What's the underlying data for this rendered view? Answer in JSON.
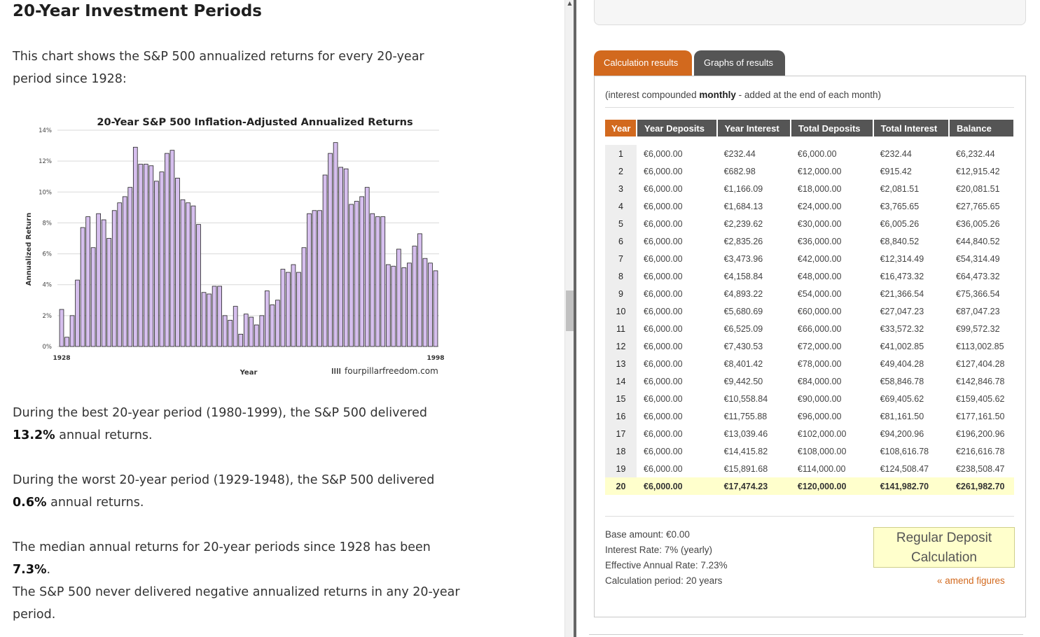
{
  "article": {
    "heading": "20-Year Investment Periods",
    "intro": "This chart shows the S&P 500 annualized returns for every 20-year period since 1928:",
    "best_pre": "During the best 20-year period (1980-1999), the S&P 500 delivered ",
    "best_value": "13.2%",
    "best_post": " annual returns.",
    "worst_pre": "During the worst 20-year period (1929-1948), the S&P 500 delivered ",
    "worst_value": "0.6%",
    "worst_post": " annual returns.",
    "median_pre": "The median annual returns for 20-year periods since 1928 has been ",
    "median_value": "7.3%",
    "median_post": ".",
    "never": "The S&P 500 never delivered negative annualized returns in any 20-year period."
  },
  "chart_data": {
    "type": "bar",
    "title": "20-Year S&P 500 Inflation-Adjusted Annualized Returns",
    "xlabel": "Year",
    "ylabel": "Annualized Return",
    "watermark": "fourpillarfreedom.com",
    "x_start": 1928,
    "x_end": 1998,
    "x_tick_labels": [
      "1928",
      "1998"
    ],
    "y_ticks": [
      "0%",
      "2%",
      "4%",
      "6%",
      "8%",
      "10%",
      "12%",
      "14%"
    ],
    "ylim": [
      0,
      14
    ],
    "grid": true,
    "bar_color": "#d6bfee",
    "values": [
      2.4,
      0.6,
      2.0,
      4.3,
      7.7,
      8.4,
      6.4,
      8.6,
      8.2,
      7.0,
      8.8,
      9.3,
      9.7,
      10.3,
      12.9,
      11.8,
      11.8,
      11.7,
      10.7,
      11.3,
      12.5,
      12.7,
      10.9,
      9.5,
      9.3,
      9.1,
      7.9,
      3.5,
      3.4,
      3.9,
      3.9,
      2.0,
      1.7,
      2.6,
      0.8,
      2.1,
      1.9,
      1.4,
      2.0,
      3.6,
      2.7,
      3.0,
      5.0,
      4.8,
      5.3,
      4.8,
      6.4,
      8.6,
      8.8,
      8.8,
      11.1,
      12.5,
      13.2,
      11.6,
      11.5,
      9.2,
      9.4,
      9.7,
      10.3,
      8.6,
      8.4,
      8.4,
      5.3,
      5.2,
      6.3,
      5.1,
      5.4,
      6.5,
      7.3,
      5.7,
      5.4,
      4.9
    ]
  },
  "calculator": {
    "tab_results": "Calculation results",
    "tab_graphs": "Graphs of results",
    "note_pre": "(interest compounded ",
    "note_bold": "monthly",
    "note_post": " - added at the end of each month)",
    "headers": [
      "Year",
      "Year Deposits",
      "Year Interest",
      "Total Deposits",
      "Total Interest",
      "Balance"
    ],
    "rows": [
      [
        "1",
        "€6,000.00",
        "€232.44",
        "€6,000.00",
        "€232.44",
        "€6,232.44"
      ],
      [
        "2",
        "€6,000.00",
        "€682.98",
        "€12,000.00",
        "€915.42",
        "€12,915.42"
      ],
      [
        "3",
        "€6,000.00",
        "€1,166.09",
        "€18,000.00",
        "€2,081.51",
        "€20,081.51"
      ],
      [
        "4",
        "€6,000.00",
        "€1,684.13",
        "€24,000.00",
        "€3,765.65",
        "€27,765.65"
      ],
      [
        "5",
        "€6,000.00",
        "€2,239.62",
        "€30,000.00",
        "€6,005.26",
        "€36,005.26"
      ],
      [
        "6",
        "€6,000.00",
        "€2,835.26",
        "€36,000.00",
        "€8,840.52",
        "€44,840.52"
      ],
      [
        "7",
        "€6,000.00",
        "€3,473.96",
        "€42,000.00",
        "€12,314.49",
        "€54,314.49"
      ],
      [
        "8",
        "€6,000.00",
        "€4,158.84",
        "€48,000.00",
        "€16,473.32",
        "€64,473.32"
      ],
      [
        "9",
        "€6,000.00",
        "€4,893.22",
        "€54,000.00",
        "€21,366.54",
        "€75,366.54"
      ],
      [
        "10",
        "€6,000.00",
        "€5,680.69",
        "€60,000.00",
        "€27,047.23",
        "€87,047.23"
      ],
      [
        "11",
        "€6,000.00",
        "€6,525.09",
        "€66,000.00",
        "€33,572.32",
        "€99,572.32"
      ],
      [
        "12",
        "€6,000.00",
        "€7,430.53",
        "€72,000.00",
        "€41,002.85",
        "€113,002.85"
      ],
      [
        "13",
        "€6,000.00",
        "€8,401.42",
        "€78,000.00",
        "€49,404.28",
        "€127,404.28"
      ],
      [
        "14",
        "€6,000.00",
        "€9,442.50",
        "€84,000.00",
        "€58,846.78",
        "€142,846.78"
      ],
      [
        "15",
        "€6,000.00",
        "€10,558.84",
        "€90,000.00",
        "€69,405.62",
        "€159,405.62"
      ],
      [
        "16",
        "€6,000.00",
        "€11,755.88",
        "€96,000.00",
        "€81,161.50",
        "€177,161.50"
      ],
      [
        "17",
        "€6,000.00",
        "€13,039.46",
        "€102,000.00",
        "€94,200.96",
        "€196,200.96"
      ],
      [
        "18",
        "€6,000.00",
        "€14,415.82",
        "€108,000.00",
        "€108,616.78",
        "€216,616.78"
      ],
      [
        "19",
        "€6,000.00",
        "€15,891.68",
        "€114,000.00",
        "€124,508.47",
        "€238,508.47"
      ],
      [
        "20",
        "€6,000.00",
        "€17,474.23",
        "€120,000.00",
        "€141,982.70",
        "€261,982.70"
      ]
    ],
    "summary": {
      "base": "Base amount: €0.00",
      "rate": "Interest Rate: 7% (yearly)",
      "effective": "Effective Annual Rate: 7.23%",
      "period": "Calculation period: 20 years"
    },
    "regular_button_line1": "Regular Deposit",
    "regular_button_line2": "Calculation",
    "amend_link": "« amend figures"
  },
  "colors": {
    "accent": "#d2691e",
    "tab_dark": "#555555",
    "highlight_row": "#ffffcc"
  }
}
